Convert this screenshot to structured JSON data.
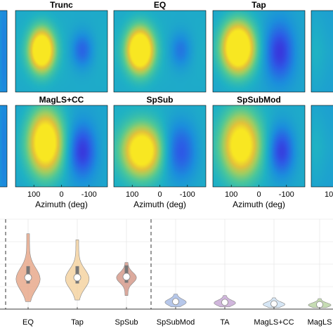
{
  "colors": {
    "colormap": [
      "#3f26d8",
      "#2c5ce6",
      "#1b8fdc",
      "#1fb2c4",
      "#4cc79a",
      "#9dcd63",
      "#e3c23a",
      "#f8e722"
    ],
    "grid": "#e0e0e0",
    "dashed": "#333333"
  },
  "chart_data": [
    {
      "type": "heatmap",
      "xlabel": "Azimuth (deg)",
      "x_ticks": [
        "100",
        "0",
        "-100"
      ],
      "panels": [
        {
          "title": "Trunc",
          "row": 0,
          "col": 0,
          "blobs": [
            {
              "x": 0.28,
              "y": 0.48,
              "rx": 0.13,
              "ry": 0.25,
              "v": 0.95
            },
            {
              "x": 0.72,
              "y": 0.48,
              "rx": 0.12,
              "ry": 0.22,
              "v": -0.25
            }
          ],
          "base": 0.42
        },
        {
          "title": "EQ",
          "row": 0,
          "col": 1,
          "blobs": [
            {
              "x": 0.28,
              "y": 0.48,
              "rx": 0.14,
              "ry": 0.26,
              "v": 1.0
            },
            {
              "x": 0.72,
              "y": 0.48,
              "rx": 0.12,
              "ry": 0.22,
              "v": -0.2
            }
          ],
          "base": 0.42
        },
        {
          "title": "Tap",
          "row": 0,
          "col": 2,
          "blobs": [
            {
              "x": 0.27,
              "y": 0.45,
              "rx": 0.17,
              "ry": 0.3,
              "v": 1.0
            },
            {
              "x": 0.72,
              "y": 0.5,
              "rx": 0.16,
              "ry": 0.35,
              "v": -0.35
            }
          ],
          "base": 0.4
        },
        {
          "title": "MagLS+CC",
          "row": 1,
          "col": 0,
          "blobs": [
            {
              "x": 0.32,
              "y": 0.45,
              "rx": 0.18,
              "ry": 0.38,
              "v": 0.85
            },
            {
              "x": 0.72,
              "y": 0.55,
              "rx": 0.15,
              "ry": 0.32,
              "v": -0.35
            }
          ],
          "base": 0.4
        },
        {
          "title": "SpSub",
          "row": 1,
          "col": 1,
          "blobs": [
            {
              "x": 0.3,
              "y": 0.55,
              "rx": 0.2,
              "ry": 0.3,
              "v": 0.8
            },
            {
              "x": 0.72,
              "y": 0.55,
              "rx": 0.18,
              "ry": 0.35,
              "v": -0.3
            }
          ],
          "base": 0.43
        },
        {
          "title": "SpSubMod",
          "row": 1,
          "col": 2,
          "blobs": [
            {
              "x": 0.3,
              "y": 0.48,
              "rx": 0.2,
              "ry": 0.38,
              "v": 0.75
            },
            {
              "x": 0.74,
              "y": 0.55,
              "rx": 0.14,
              "ry": 0.3,
              "v": -0.35
            }
          ],
          "base": 0.42
        }
      ]
    },
    {
      "type": "violin",
      "categories": [
        "EQ",
        "Tap",
        "SpSub",
        "SpSubMod",
        "TA",
        "MagLS+CC",
        "MagLS"
      ],
      "category_labels": [
        "EQ",
        "Tap",
        "SpSub",
        "SpSubMod",
        "TA",
        "MagLS+CC",
        "MagLS"
      ],
      "colors": [
        "#e8a98c",
        "#f5d3a2",
        "#d69b8c",
        "#a9bde6",
        "#c8a9d6",
        "#cfe2f3",
        "#bcd6a6"
      ],
      "median": [
        0.42,
        0.42,
        0.43,
        0.1,
        0.09,
        0.07,
        0.06
      ],
      "min": [
        0.1,
        0.12,
        0.18,
        0.03,
        0.03,
        0.02,
        0.02
      ],
      "max": [
        1.0,
        0.92,
        0.62,
        0.2,
        0.18,
        0.15,
        0.14
      ],
      "ylim": [
        0,
        1.1
      ],
      "grid": true
    }
  ]
}
